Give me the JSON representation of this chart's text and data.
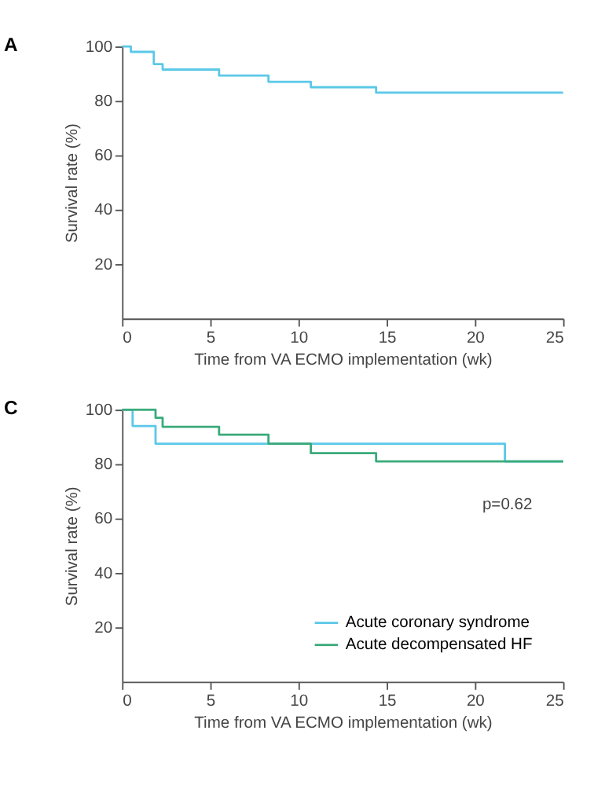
{
  "chart_data": [
    {
      "type": "step",
      "title": "A",
      "xlabel": "Time from VA ECMO implementation (wk)",
      "ylabel": "Survival rate (%)",
      "xlim": [
        0,
        25
      ],
      "xticks": [
        0,
        5,
        10,
        15,
        20,
        25
      ],
      "ylim": [
        0,
        100
      ],
      "yticks": [
        20,
        40,
        60,
        80,
        100
      ],
      "grid": false,
      "legend": false,
      "series": [
        {
          "color": "#5bc8e8",
          "x": [
            0,
            0.5,
            1.8,
            2.3,
            5.5,
            8.3,
            10.7,
            14.4,
            25
          ],
          "values": [
            100,
            98,
            93.5,
            91.5,
            89.3,
            87,
            85,
            83,
            83
          ]
        }
      ]
    },
    {
      "type": "step",
      "title": "C",
      "xlabel": "Time from VA ECMO implementation (wk)",
      "ylabel": "Survival rate (%)",
      "xlim": [
        0,
        25
      ],
      "xticks": [
        0,
        5,
        10,
        15,
        20,
        25
      ],
      "ylim": [
        0,
        100
      ],
      "yticks": [
        20,
        40,
        60,
        80,
        100
      ],
      "grid": false,
      "legend": "bottom right",
      "annotations": [
        "p=0.62"
      ],
      "series": [
        {
          "name": "Acute coronary syndrome",
          "color": "#5bc8e8",
          "x": [
            0,
            0.6,
            1.9,
            21.7,
            25
          ],
          "values": [
            100,
            94,
            87.5,
            81,
            81
          ]
        },
        {
          "name": "Acute decompensated HF",
          "color": "#3aaa7a",
          "x": [
            0,
            1.9,
            2.3,
            5.5,
            8.3,
            10.7,
            14.4,
            25
          ],
          "values": [
            100,
            97,
            93.7,
            90.8,
            87.5,
            84,
            81,
            81
          ]
        }
      ]
    }
  ]
}
